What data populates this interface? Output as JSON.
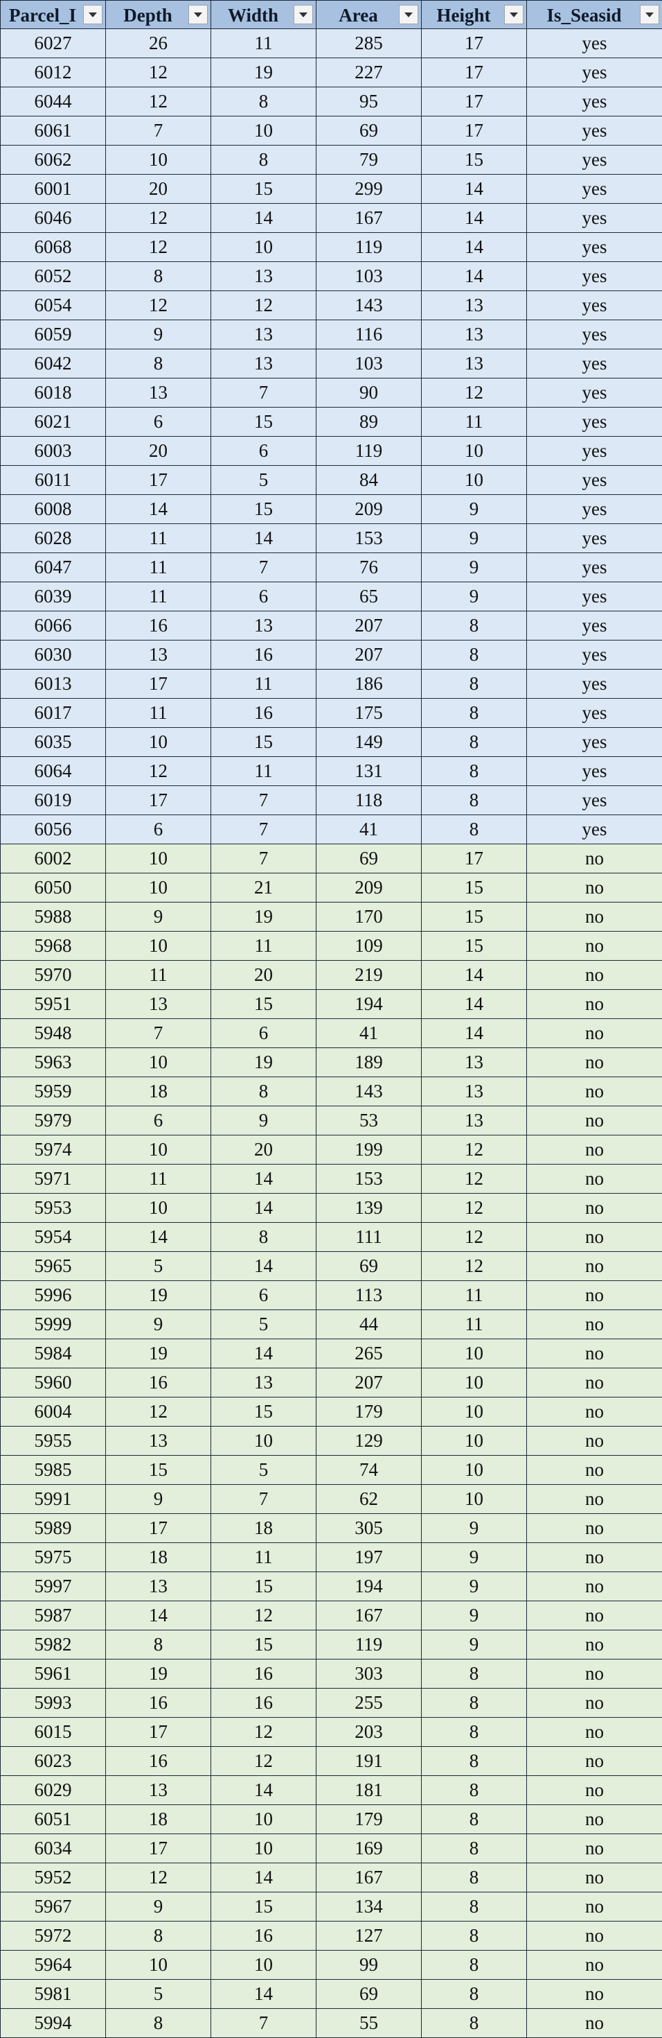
{
  "table": {
    "columns": [
      {
        "key": "parcel",
        "label": "Parcel_I"
      },
      {
        "key": "depth",
        "label": "Depth"
      },
      {
        "key": "width",
        "label": "Width"
      },
      {
        "key": "area",
        "label": "Area"
      },
      {
        "key": "height",
        "label": "Height"
      },
      {
        "key": "is_seaside",
        "label": "Is_Seasid"
      }
    ],
    "rows": [
      [
        "6027",
        "26",
        "11",
        "285",
        "17",
        "yes"
      ],
      [
        "6012",
        "12",
        "19",
        "227",
        "17",
        "yes"
      ],
      [
        "6044",
        "12",
        "8",
        "95",
        "17",
        "yes"
      ],
      [
        "6061",
        "7",
        "10",
        "69",
        "17",
        "yes"
      ],
      [
        "6062",
        "10",
        "8",
        "79",
        "15",
        "yes"
      ],
      [
        "6001",
        "20",
        "15",
        "299",
        "14",
        "yes"
      ],
      [
        "6046",
        "12",
        "14",
        "167",
        "14",
        "yes"
      ],
      [
        "6068",
        "12",
        "10",
        "119",
        "14",
        "yes"
      ],
      [
        "6052",
        "8",
        "13",
        "103",
        "14",
        "yes"
      ],
      [
        "6054",
        "12",
        "12",
        "143",
        "13",
        "yes"
      ],
      [
        "6059",
        "9",
        "13",
        "116",
        "13",
        "yes"
      ],
      [
        "6042",
        "8",
        "13",
        "103",
        "13",
        "yes"
      ],
      [
        "6018",
        "13",
        "7",
        "90",
        "12",
        "yes"
      ],
      [
        "6021",
        "6",
        "15",
        "89",
        "11",
        "yes"
      ],
      [
        "6003",
        "20",
        "6",
        "119",
        "10",
        "yes"
      ],
      [
        "6011",
        "17",
        "5",
        "84",
        "10",
        "yes"
      ],
      [
        "6008",
        "14",
        "15",
        "209",
        "9",
        "yes"
      ],
      [
        "6028",
        "11",
        "14",
        "153",
        "9",
        "yes"
      ],
      [
        "6047",
        "11",
        "7",
        "76",
        "9",
        "yes"
      ],
      [
        "6039",
        "11",
        "6",
        "65",
        "9",
        "yes"
      ],
      [
        "6066",
        "16",
        "13",
        "207",
        "8",
        "yes"
      ],
      [
        "6030",
        "13",
        "16",
        "207",
        "8",
        "yes"
      ],
      [
        "6013",
        "17",
        "11",
        "186",
        "8",
        "yes"
      ],
      [
        "6017",
        "11",
        "16",
        "175",
        "8",
        "yes"
      ],
      [
        "6035",
        "10",
        "15",
        "149",
        "8",
        "yes"
      ],
      [
        "6064",
        "12",
        "11",
        "131",
        "8",
        "yes"
      ],
      [
        "6019",
        "17",
        "7",
        "118",
        "8",
        "yes"
      ],
      [
        "6056",
        "6",
        "7",
        "41",
        "8",
        "yes"
      ],
      [
        "6002",
        "10",
        "7",
        "69",
        "17",
        "no"
      ],
      [
        "6050",
        "10",
        "21",
        "209",
        "15",
        "no"
      ],
      [
        "5988",
        "9",
        "19",
        "170",
        "15",
        "no"
      ],
      [
        "5968",
        "10",
        "11",
        "109",
        "15",
        "no"
      ],
      [
        "5970",
        "11",
        "20",
        "219",
        "14",
        "no"
      ],
      [
        "5951",
        "13",
        "15",
        "194",
        "14",
        "no"
      ],
      [
        "5948",
        "7",
        "6",
        "41",
        "14",
        "no"
      ],
      [
        "5963",
        "10",
        "19",
        "189",
        "13",
        "no"
      ],
      [
        "5959",
        "18",
        "8",
        "143",
        "13",
        "no"
      ],
      [
        "5979",
        "6",
        "9",
        "53",
        "13",
        "no"
      ],
      [
        "5974",
        "10",
        "20",
        "199",
        "12",
        "no"
      ],
      [
        "5971",
        "11",
        "14",
        "153",
        "12",
        "no"
      ],
      [
        "5953",
        "10",
        "14",
        "139",
        "12",
        "no"
      ],
      [
        "5954",
        "14",
        "8",
        "111",
        "12",
        "no"
      ],
      [
        "5965",
        "5",
        "14",
        "69",
        "12",
        "no"
      ],
      [
        "5996",
        "19",
        "6",
        "113",
        "11",
        "no"
      ],
      [
        "5999",
        "9",
        "5",
        "44",
        "11",
        "no"
      ],
      [
        "5984",
        "19",
        "14",
        "265",
        "10",
        "no"
      ],
      [
        "5960",
        "16",
        "13",
        "207",
        "10",
        "no"
      ],
      [
        "6004",
        "12",
        "15",
        "179",
        "10",
        "no"
      ],
      [
        "5955",
        "13",
        "10",
        "129",
        "10",
        "no"
      ],
      [
        "5985",
        "15",
        "5",
        "74",
        "10",
        "no"
      ],
      [
        "5991",
        "9",
        "7",
        "62",
        "10",
        "no"
      ],
      [
        "5989",
        "17",
        "18",
        "305",
        "9",
        "no"
      ],
      [
        "5975",
        "18",
        "11",
        "197",
        "9",
        "no"
      ],
      [
        "5997",
        "13",
        "15",
        "194",
        "9",
        "no"
      ],
      [
        "5987",
        "14",
        "12",
        "167",
        "9",
        "no"
      ],
      [
        "5982",
        "8",
        "15",
        "119",
        "9",
        "no"
      ],
      [
        "5961",
        "19",
        "16",
        "303",
        "8",
        "no"
      ],
      [
        "5993",
        "16",
        "16",
        "255",
        "8",
        "no"
      ],
      [
        "6015",
        "17",
        "12",
        "203",
        "8",
        "no"
      ],
      [
        "6023",
        "16",
        "12",
        "191",
        "8",
        "no"
      ],
      [
        "6029",
        "13",
        "14",
        "181",
        "8",
        "no"
      ],
      [
        "6051",
        "18",
        "10",
        "179",
        "8",
        "no"
      ],
      [
        "6034",
        "17",
        "10",
        "169",
        "8",
        "no"
      ],
      [
        "5952",
        "12",
        "14",
        "167",
        "8",
        "no"
      ],
      [
        "5967",
        "9",
        "15",
        "134",
        "8",
        "no"
      ],
      [
        "5972",
        "8",
        "16",
        "127",
        "8",
        "no"
      ],
      [
        "5964",
        "10",
        "10",
        "99",
        "8",
        "no"
      ],
      [
        "5981",
        "5",
        "14",
        "69",
        "8",
        "no"
      ],
      [
        "5994",
        "8",
        "7",
        "55",
        "8",
        "no"
      ]
    ]
  },
  "colors": {
    "header_bg": "#a9c1e0",
    "seaside_row_bg": "#dce8f5",
    "inland_row_bg": "#e3eedb",
    "grid_line": "#1c2a3a"
  }
}
